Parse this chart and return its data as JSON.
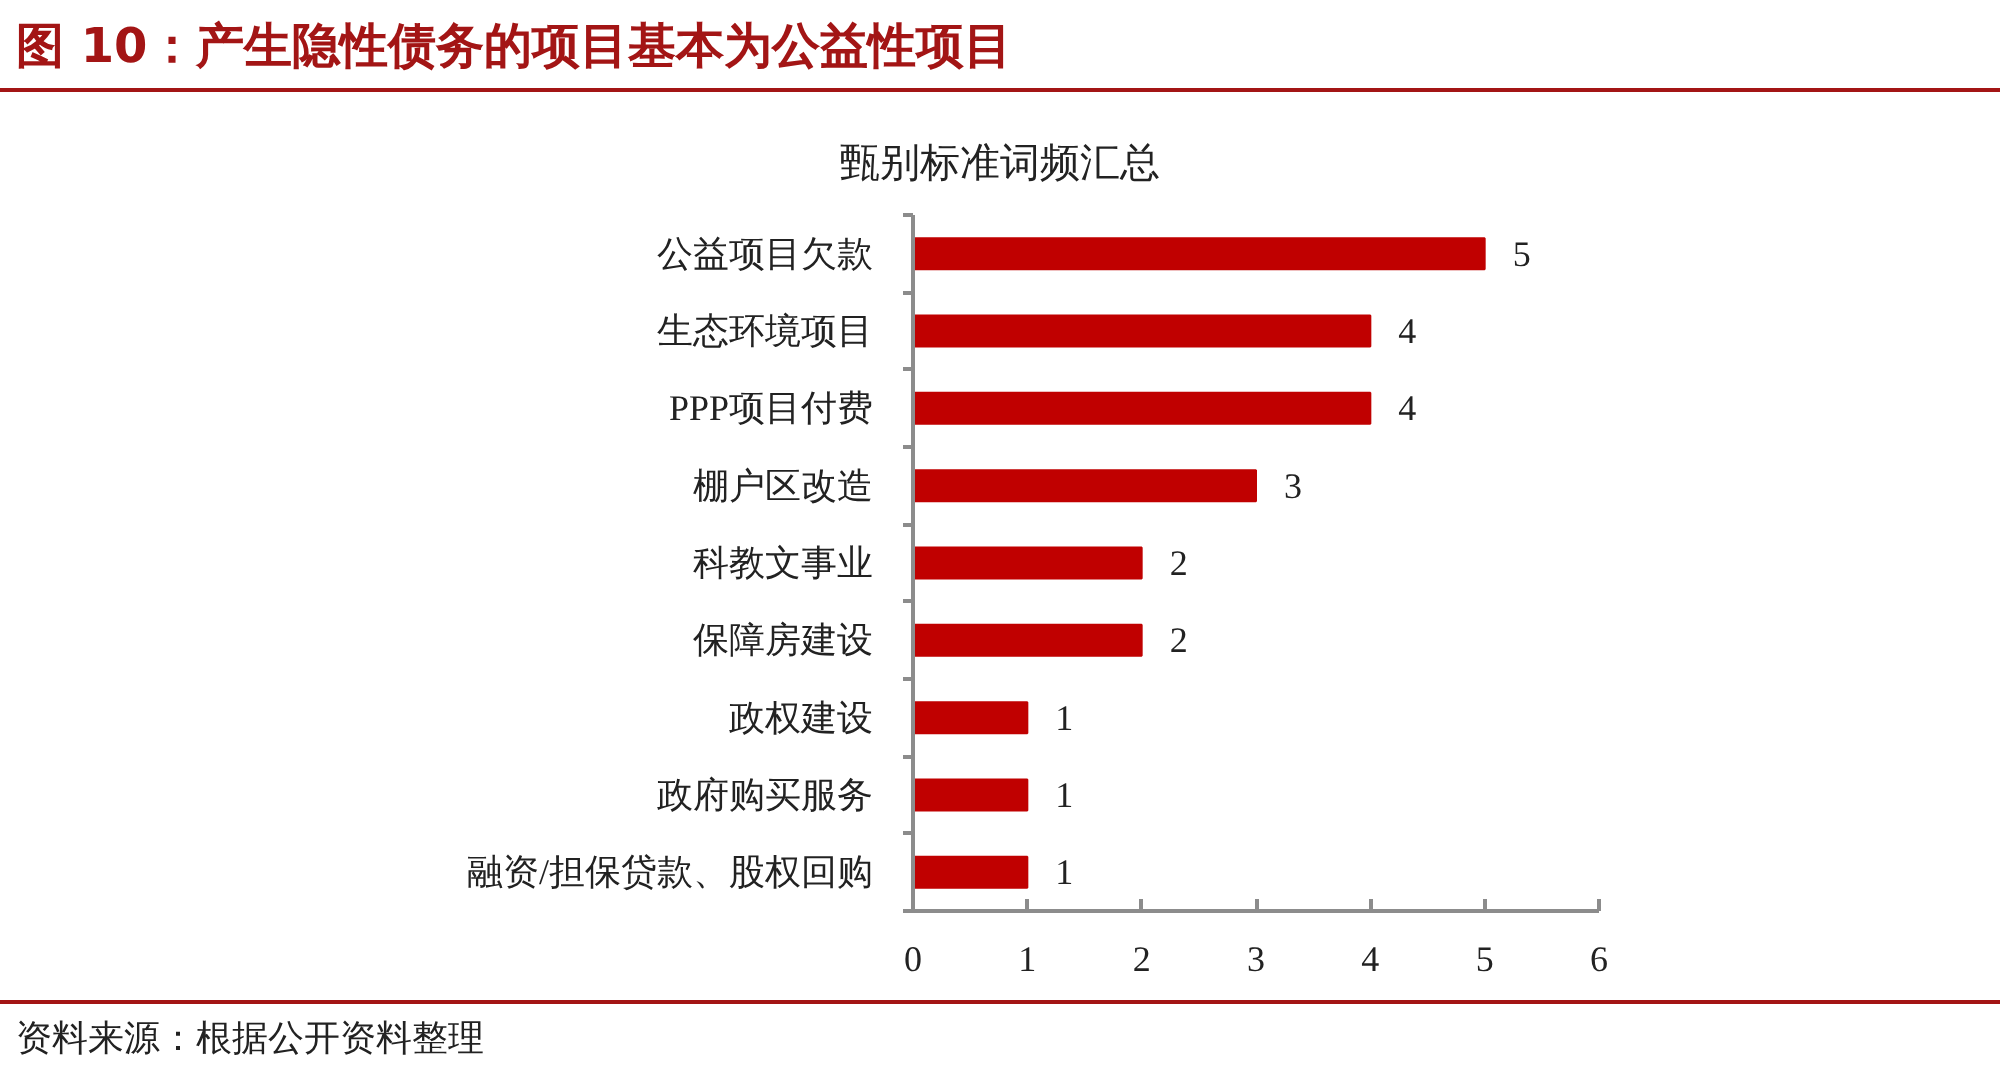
{
  "chart_data": {
    "type": "bar",
    "orientation": "horizontal",
    "title": "图 10：产生隐性债务的项目基本为公益性项目",
    "subtitle": "甄别标准词频汇总",
    "categories": [
      "公益项目欠款",
      "生态环境项目",
      "PPP项目付费",
      "棚户区改造",
      "科教文事业",
      "保障房建设",
      "政权建设",
      "政府购买服务",
      "融资/担保贷款、股权回购"
    ],
    "values": [
      5,
      4,
      4,
      3,
      2,
      2,
      1,
      1,
      1
    ],
    "color": "#c00000",
    "xlim": [
      0,
      6
    ],
    "xticks": [
      0,
      1,
      2,
      3,
      4,
      5,
      6
    ],
    "data_labels": true,
    "annotations": [
      "资料来源：根据公开资料整理"
    ]
  }
}
